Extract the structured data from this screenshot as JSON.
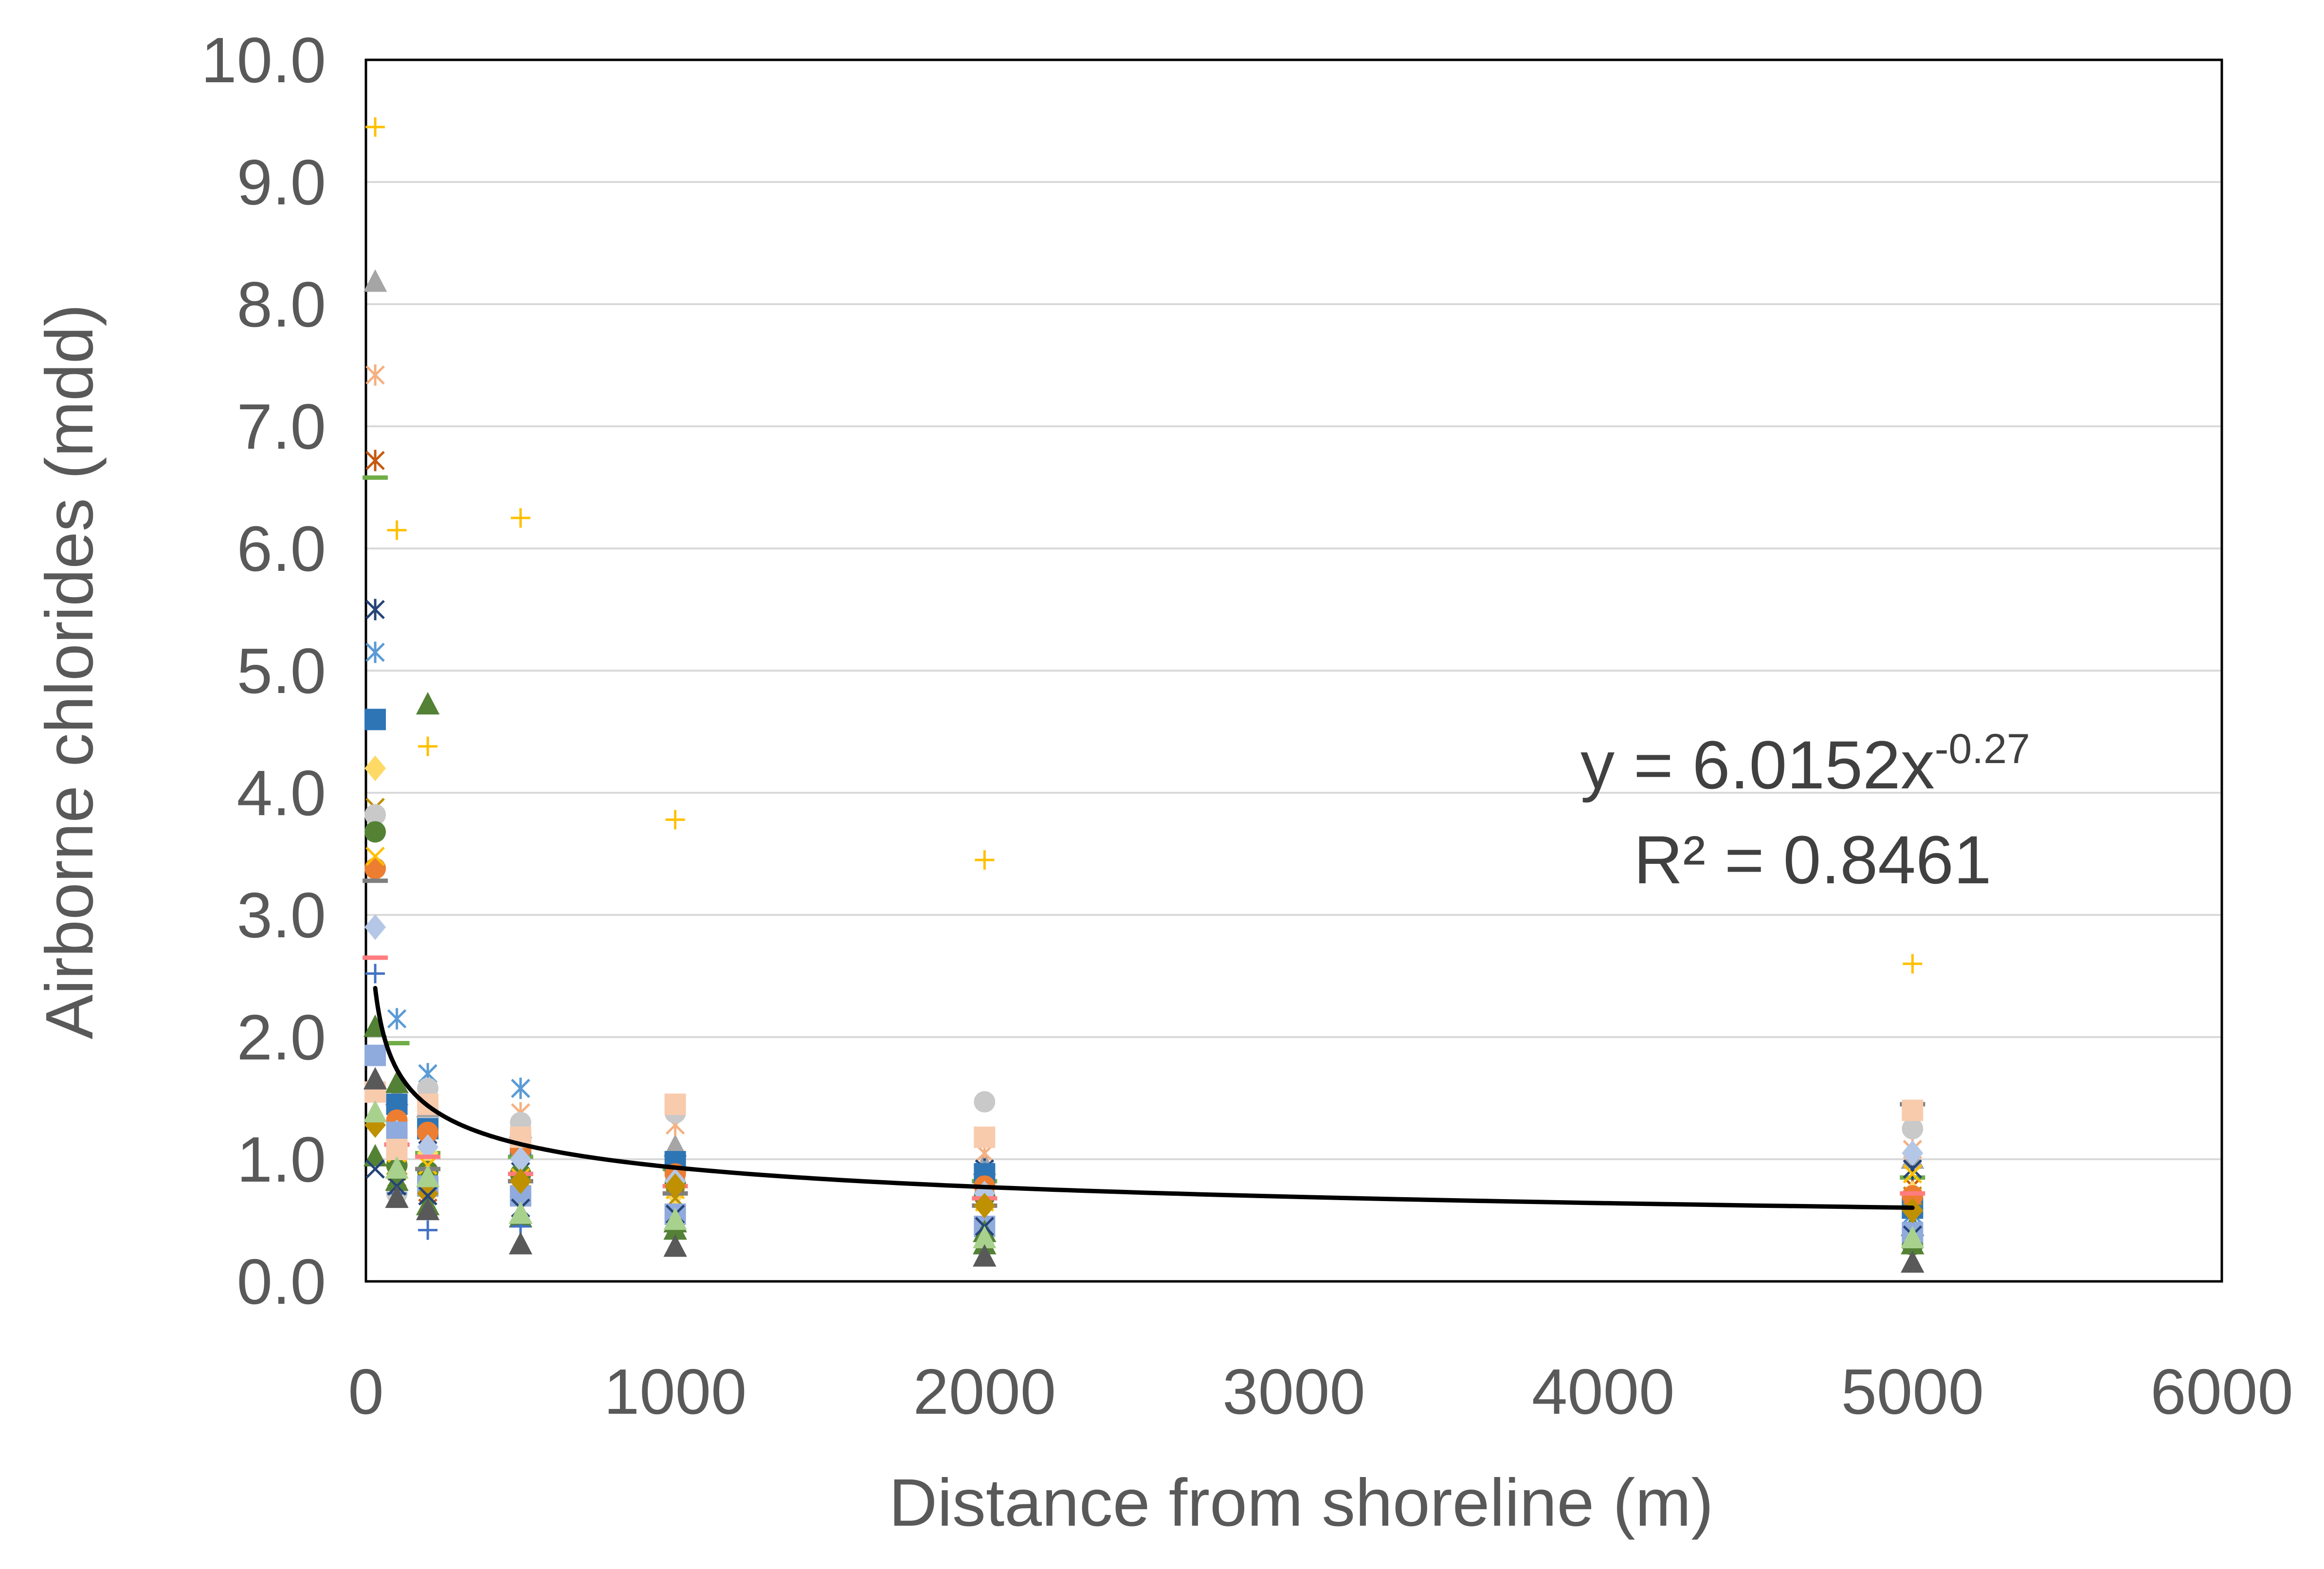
{
  "chart_data": {
    "type": "scatter",
    "title": "",
    "xlabel": "Distance from shoreline (m)",
    "ylabel": "Airborne chlorides (mdd)",
    "xlim": [
      0,
      6000
    ],
    "ylim": [
      0,
      10
    ],
    "x_ticks": [
      "0",
      "1000",
      "2000",
      "3000",
      "4000",
      "5000",
      "6000"
    ],
    "y_ticks": [
      "0.0",
      "1.0",
      "2.0",
      "3.0",
      "4.0",
      "5.0",
      "6.0",
      "7.0",
      "8.0",
      "9.0",
      "10.0"
    ],
    "grid": "horizontal",
    "legend": "none",
    "series": [
      {
        "color": "#ffc000",
        "marker": "plus",
        "points": [
          [
            30,
            9.45
          ],
          [
            100,
            6.15
          ],
          [
            200,
            4.38
          ],
          [
            500,
            6.25
          ],
          [
            1000,
            3.78
          ],
          [
            2000,
            3.45
          ],
          [
            5000,
            2.6
          ]
        ]
      },
      {
        "color": "#a5a5a5",
        "marker": "triangle",
        "points": [
          [
            30,
            8.18
          ],
          [
            100,
            1.52
          ],
          [
            200,
            1.42
          ],
          [
            500,
            1.25
          ],
          [
            1000,
            1.1
          ],
          [
            2000,
            0.95
          ],
          [
            5000,
            1.0
          ]
        ]
      },
      {
        "color": "#f4b183",
        "marker": "star",
        "points": [
          [
            30,
            7.42
          ],
          [
            100,
            1.3
          ],
          [
            200,
            1.15
          ],
          [
            500,
            1.38
          ],
          [
            1000,
            1.28
          ],
          [
            2000,
            1.05
          ],
          [
            5000,
            1.08
          ]
        ]
      },
      {
        "color": "#c55a11",
        "marker": "star",
        "points": [
          [
            30,
            6.72
          ],
          [
            100,
            0.85
          ],
          [
            200,
            0.6
          ],
          [
            500,
            0.95
          ],
          [
            1000,
            0.85
          ],
          [
            2000,
            0.72
          ],
          [
            5000,
            0.78
          ]
        ]
      },
      {
        "color": "#70ad47",
        "marker": "dash",
        "points": [
          [
            30,
            6.58
          ],
          [
            100,
            1.95
          ],
          [
            200,
            1.05
          ],
          [
            500,
            1.02
          ],
          [
            1000,
            0.92
          ],
          [
            2000,
            0.82
          ],
          [
            5000,
            0.85
          ]
        ]
      },
      {
        "color": "#264478",
        "marker": "star",
        "points": [
          [
            30,
            5.5
          ],
          [
            100,
            1.45
          ],
          [
            200,
            1.2
          ],
          [
            500,
            0.9
          ],
          [
            1000,
            0.95
          ],
          [
            2000,
            0.92
          ],
          [
            5000,
            0.92
          ]
        ]
      },
      {
        "color": "#5b9bd5",
        "marker": "star",
        "points": [
          [
            30,
            5.15
          ],
          [
            100,
            2.15
          ],
          [
            200,
            1.7
          ],
          [
            500,
            1.58
          ],
          [
            1000,
            0.95
          ],
          [
            2000,
            0.9
          ],
          [
            5000,
            0.55
          ]
        ]
      },
      {
        "color": "#2e75b6",
        "marker": "square",
        "points": [
          [
            30,
            4.6
          ],
          [
            100,
            1.45
          ],
          [
            200,
            1.25
          ],
          [
            500,
            1.12
          ],
          [
            1000,
            0.98
          ],
          [
            2000,
            0.88
          ],
          [
            5000,
            0.6
          ]
        ]
      },
      {
        "color": "#538135",
        "marker": "triangle",
        "points": [
          [
            30,
            2.08
          ],
          [
            100,
            1.62
          ],
          [
            200,
            4.72
          ],
          [
            500,
            0.52
          ],
          [
            1000,
            0.42
          ],
          [
            2000,
            0.3
          ],
          [
            5000,
            0.45
          ]
        ]
      },
      {
        "color": "#ffd966",
        "marker": "diamond",
        "points": [
          [
            30,
            4.2
          ],
          [
            100,
            0.98
          ],
          [
            200,
            1.05
          ],
          [
            500,
            0.9
          ],
          [
            1000,
            0.72
          ],
          [
            2000,
            0.62
          ],
          [
            5000,
            0.72
          ]
        ]
      },
      {
        "color": "#bf9000",
        "marker": "x",
        "points": [
          [
            30,
            3.88
          ],
          [
            100,
            0.9
          ],
          [
            200,
            0.82
          ],
          [
            500,
            0.78
          ],
          [
            1000,
            0.68
          ],
          [
            2000,
            0.65
          ],
          [
            5000,
            0.7
          ]
        ]
      },
      {
        "color": "#c9c9c9",
        "marker": "circle",
        "points": [
          [
            30,
            3.82
          ],
          [
            100,
            0.72
          ],
          [
            200,
            1.58
          ],
          [
            500,
            1.3
          ],
          [
            1000,
            1.38
          ],
          [
            2000,
            1.47
          ],
          [
            5000,
            1.25
          ]
        ]
      },
      {
        "color": "#548235",
        "marker": "circle",
        "points": [
          [
            30,
            3.68
          ],
          [
            100,
            0.95
          ],
          [
            200,
            0.9
          ],
          [
            500,
            0.88
          ],
          [
            1000,
            0.8
          ],
          [
            2000,
            0.7
          ],
          [
            5000,
            0.3
          ]
        ]
      },
      {
        "color": "#ed7d31",
        "marker": "circle",
        "points": [
          [
            30,
            3.38
          ],
          [
            100,
            1.32
          ],
          [
            200,
            1.22
          ],
          [
            500,
            1.08
          ],
          [
            1000,
            0.88
          ],
          [
            2000,
            0.78
          ],
          [
            5000,
            0.7
          ]
        ]
      },
      {
        "color": "#ffc000",
        "marker": "x",
        "points": [
          [
            30,
            3.48
          ],
          [
            100,
            1.05
          ],
          [
            200,
            0.95
          ],
          [
            500,
            0.85
          ],
          [
            1000,
            0.75
          ],
          [
            2000,
            0.65
          ],
          [
            5000,
            0.88
          ]
        ]
      },
      {
        "color": "#7f7f7f",
        "marker": "dash",
        "points": [
          [
            30,
            3.28
          ],
          [
            100,
            1.12
          ],
          [
            200,
            0.92
          ],
          [
            500,
            0.82
          ],
          [
            1000,
            0.72
          ],
          [
            2000,
            0.62
          ],
          [
            5000,
            1.45
          ]
        ]
      },
      {
        "color": "#b4c7e7",
        "marker": "diamond",
        "points": [
          [
            30,
            2.9
          ],
          [
            100,
            1.22
          ],
          [
            200,
            1.1
          ],
          [
            500,
            1.0
          ],
          [
            1000,
            0.82
          ],
          [
            2000,
            0.72
          ],
          [
            5000,
            1.05
          ]
        ]
      },
      {
        "color": "#ff7c80",
        "marker": "dash",
        "points": [
          [
            30,
            2.65
          ],
          [
            100,
            1.12
          ],
          [
            200,
            1.02
          ],
          [
            500,
            0.88
          ],
          [
            1000,
            0.78
          ],
          [
            2000,
            0.68
          ],
          [
            5000,
            0.72
          ]
        ]
      },
      {
        "color": "#4472c4",
        "marker": "plus",
        "points": [
          [
            30,
            2.52
          ],
          [
            100,
            0.72
          ],
          [
            200,
            0.42
          ],
          [
            500,
            0.45
          ],
          [
            1000,
            0.48
          ],
          [
            2000,
            0.45
          ],
          [
            5000,
            0.35
          ]
        ]
      },
      {
        "color": "#8faadc",
        "marker": "square",
        "points": [
          [
            30,
            1.85
          ],
          [
            100,
            1.22
          ],
          [
            200,
            0.78
          ],
          [
            500,
            0.7
          ],
          [
            1000,
            0.55
          ],
          [
            2000,
            0.45
          ],
          [
            5000,
            0.4
          ]
        ]
      },
      {
        "color": "#f8cbad",
        "marker": "square",
        "points": [
          [
            30,
            1.55
          ],
          [
            100,
            1.08
          ],
          [
            200,
            1.45
          ],
          [
            500,
            1.18
          ],
          [
            1000,
            1.45
          ],
          [
            2000,
            1.18
          ],
          [
            5000,
            1.4
          ]
        ]
      },
      {
        "color": "#bf9000",
        "marker": "diamond",
        "points": [
          [
            30,
            1.28
          ],
          [
            100,
            0.88
          ],
          [
            200,
            0.72
          ],
          [
            500,
            0.82
          ],
          [
            1000,
            0.78
          ],
          [
            2000,
            0.62
          ],
          [
            5000,
            0.58
          ]
        ]
      },
      {
        "color": "#548235",
        "marker": "triangle",
        "points": [
          [
            30,
            1.02
          ],
          [
            100,
            0.82
          ],
          [
            200,
            0.62
          ],
          [
            500,
            0.55
          ],
          [
            1000,
            0.48
          ],
          [
            2000,
            0.4
          ],
          [
            5000,
            0.3
          ]
        ]
      },
      {
        "color": "#264478",
        "marker": "x",
        "points": [
          [
            30,
            0.92
          ],
          [
            100,
            0.78
          ],
          [
            200,
            0.7
          ],
          [
            500,
            0.6
          ],
          [
            1000,
            0.55
          ],
          [
            2000,
            0.45
          ],
          [
            5000,
            0.38
          ]
        ]
      },
      {
        "color": "#a9d18e",
        "marker": "triangle",
        "points": [
          [
            30,
            1.38
          ],
          [
            100,
            0.92
          ],
          [
            200,
            0.85
          ],
          [
            500,
            0.55
          ],
          [
            1000,
            0.5
          ],
          [
            2000,
            0.35
          ],
          [
            5000,
            0.35
          ]
        ]
      },
      {
        "color": "#595959",
        "marker": "triangle",
        "points": [
          [
            30,
            1.65
          ],
          [
            100,
            0.68
          ],
          [
            200,
            0.58
          ],
          [
            500,
            0.3
          ],
          [
            1000,
            0.28
          ],
          [
            2000,
            0.2
          ],
          [
            5000,
            0.15
          ]
        ]
      }
    ],
    "trendline": {
      "type": "power",
      "coef": 6.0152,
      "exp": -0.27,
      "x_from": 30,
      "x_to": 5000,
      "color": "#000000"
    },
    "annotation": {
      "equation_base": "y = 6.0152x",
      "equation_exponent": "-0.27",
      "r_squared": "R² = 0.8461"
    }
  }
}
